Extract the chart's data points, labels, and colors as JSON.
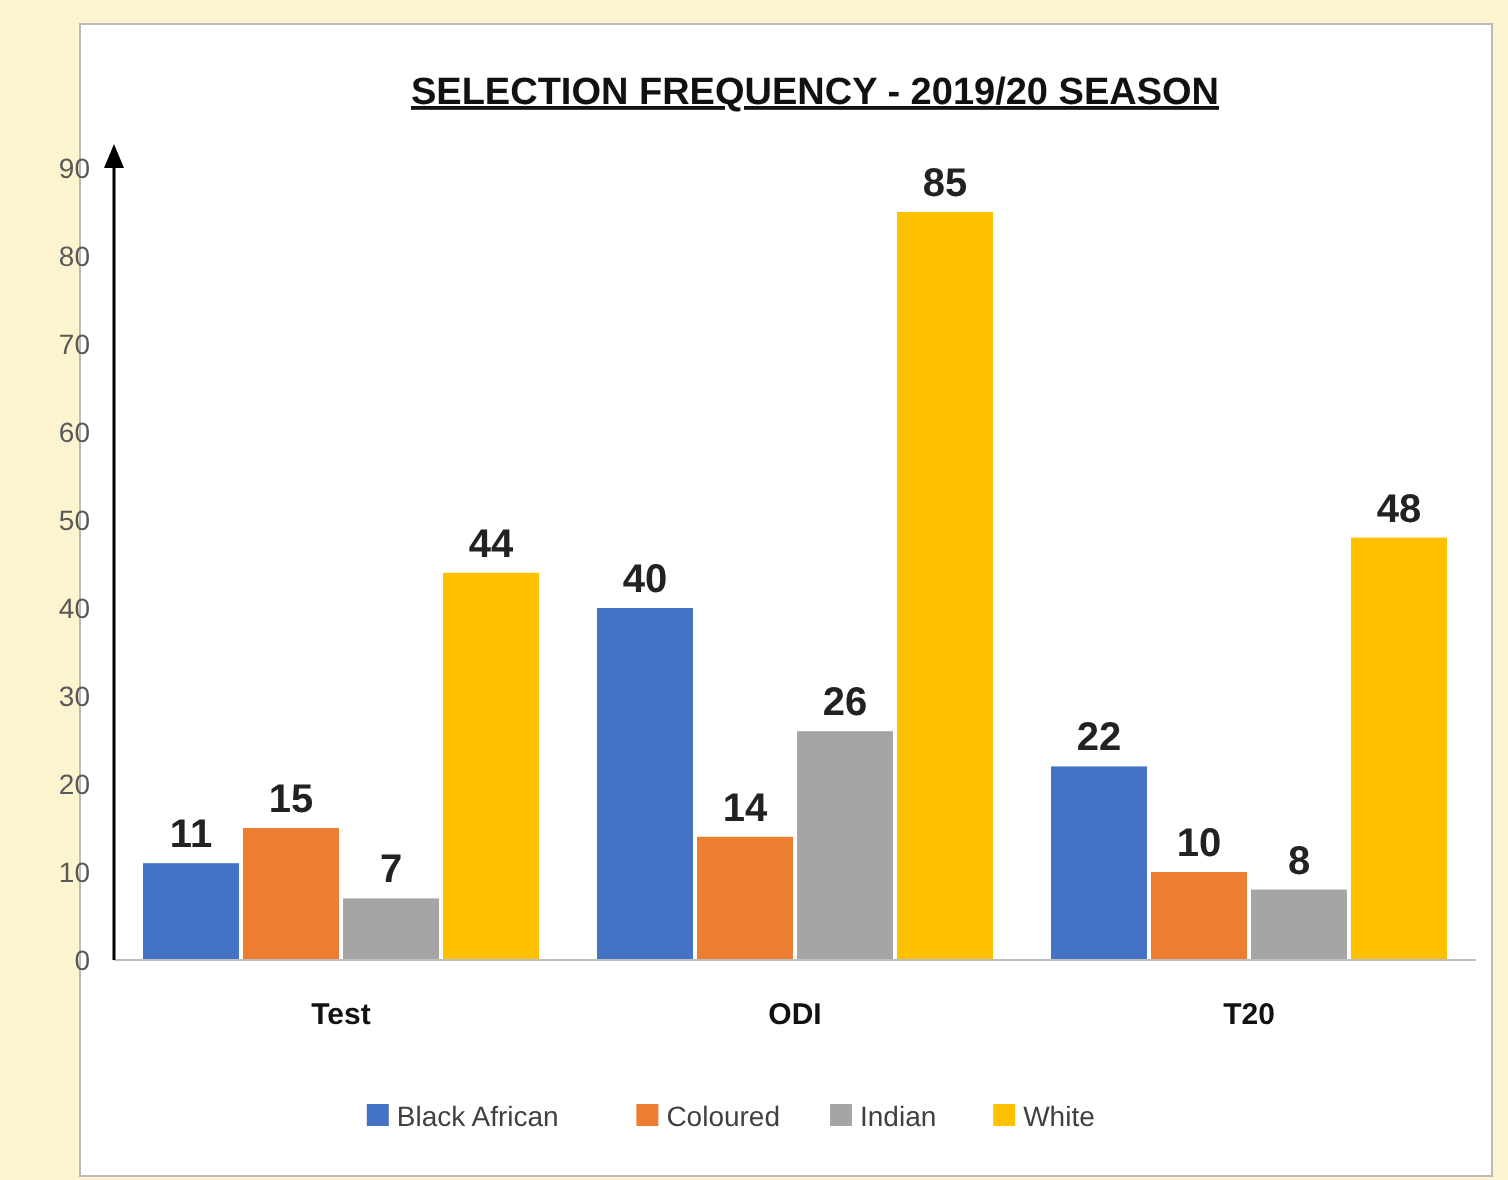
{
  "chart_data": {
    "type": "bar",
    "title": "SELECTION FREQUENCY  - 2019/20 SEASON",
    "categories": [
      "Test",
      "ODI",
      "T20"
    ],
    "series": [
      {
        "name": "Black African",
        "color": "#4472c4",
        "values": [
          11,
          40,
          22
        ]
      },
      {
        "name": "Coloured",
        "color": "#ed7d31",
        "values": [
          15,
          14,
          10
        ]
      },
      {
        "name": "Indian",
        "color": "#a5a5a5",
        "values": [
          7,
          26,
          8
        ]
      },
      {
        "name": "White",
        "color": "#ffc000",
        "values": [
          44,
          85,
          48
        ]
      }
    ],
    "ylim": [
      0,
      90
    ],
    "yticks": [
      0,
      10,
      20,
      30,
      40,
      50,
      60,
      70,
      80,
      90
    ],
    "data_labels": true,
    "legend": "bottom",
    "grid": false
  }
}
